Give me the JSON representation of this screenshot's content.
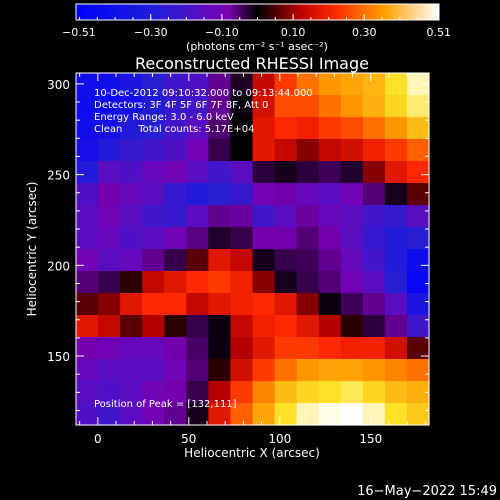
{
  "chart_data": {
    "type": "heatmap",
    "title": "Reconstructed RHESSI Image",
    "xlabel": "Heliocentric X (arcsec)",
    "ylabel": "Heliocentric Y (arcsec)",
    "xlim": [
      -12,
      182
    ],
    "ylim": [
      112,
      306
    ],
    "x_ticks": [
      0,
      50,
      100,
      150
    ],
    "y_ticks": [
      150,
      200,
      250,
      300
    ],
    "colorbar": {
      "unit": "(photons cm⁻² s⁻¹ asec⁻²)",
      "range": [
        -0.51,
        0.51
      ],
      "tick_values": [
        -0.51,
        -0.3,
        -0.1,
        0.1,
        0.3,
        0.51
      ],
      "tick_labels": [
        "−0.51",
        "−0.30",
        "−0.10",
        "0.10",
        "0.30",
        "0.51"
      ]
    },
    "info_lines": [
      "10-Dec-2012 09:10:32.000 to 09:13:44.000",
      "Detectors: 3F 4F 5F 6F 7F 8F, Att 0",
      "Energy Range: 3.0 - 6.0 keV",
      "Clean     Total counts: 5.17E+04"
    ],
    "peak_label": "Position of Peak = [132,111]",
    "peak_position": [
      132,
      111
    ],
    "intensity_grid_rows_top_to_bottom": [
      [
        -0.45,
        -0.45,
        -0.42,
        -0.38,
        -0.34,
        -0.32,
        -0.2,
        -0.05,
        0.1,
        0.2,
        0.26,
        0.3,
        0.32,
        0.35,
        0.42,
        0.48
      ],
      [
        -0.46,
        -0.47,
        -0.44,
        -0.4,
        -0.36,
        -0.34,
        -0.2,
        -0.02,
        0.12,
        0.22,
        0.22,
        0.26,
        0.3,
        0.34,
        0.4,
        0.45
      ],
      [
        -0.45,
        -0.44,
        -0.4,
        -0.38,
        -0.34,
        -0.3,
        -0.15,
        0.0,
        0.14,
        0.18,
        0.16,
        0.2,
        0.22,
        0.26,
        0.3,
        0.36
      ],
      [
        -0.44,
        -0.4,
        -0.36,
        -0.34,
        -0.32,
        -0.26,
        -0.1,
        0.0,
        0.14,
        0.1,
        0.06,
        0.1,
        0.12,
        0.16,
        0.2,
        0.24
      ],
      [
        -0.4,
        -0.3,
        -0.32,
        -0.28,
        -0.26,
        -0.3,
        -0.34,
        -0.3,
        -0.08,
        -0.04,
        -0.08,
        -0.12,
        -0.06,
        0.06,
        0.14,
        0.18
      ],
      [
        -0.32,
        -0.24,
        -0.28,
        -0.3,
        -0.36,
        -0.4,
        -0.38,
        -0.36,
        -0.26,
        -0.24,
        -0.28,
        -0.3,
        -0.26,
        -0.16,
        -0.04,
        0.04
      ],
      [
        -0.3,
        -0.26,
        -0.3,
        -0.34,
        -0.36,
        -0.3,
        -0.2,
        -0.22,
        -0.34,
        -0.3,
        -0.22,
        -0.28,
        -0.3,
        -0.34,
        -0.36,
        -0.3
      ],
      [
        -0.3,
        -0.28,
        -0.32,
        -0.3,
        -0.26,
        -0.18,
        -0.06,
        -0.1,
        -0.24,
        -0.24,
        -0.16,
        -0.24,
        -0.3,
        -0.36,
        -0.4,
        -0.38
      ],
      [
        -0.26,
        -0.3,
        -0.28,
        -0.2,
        -0.1,
        0.04,
        0.14,
        0.1,
        -0.04,
        -0.1,
        -0.12,
        -0.2,
        -0.28,
        -0.34,
        -0.4,
        -0.46
      ],
      [
        -0.16,
        -0.1,
        0.02,
        0.1,
        0.14,
        0.18,
        0.2,
        0.16,
        0.06,
        -0.04,
        -0.1,
        -0.16,
        -0.26,
        -0.3,
        -0.38,
        -0.48
      ],
      [
        0.04,
        0.06,
        0.14,
        0.18,
        0.18,
        0.1,
        0.14,
        0.16,
        0.18,
        0.14,
        0.06,
        -0.02,
        -0.12,
        -0.2,
        -0.3,
        -0.42
      ],
      [
        0.14,
        0.1,
        0.04,
        0.08,
        0.02,
        -0.1,
        -0.02,
        0.1,
        0.16,
        0.18,
        0.14,
        0.08,
        0.02,
        -0.08,
        -0.2,
        -0.34
      ],
      [
        -0.24,
        -0.26,
        -0.28,
        -0.28,
        -0.24,
        -0.14,
        -0.02,
        0.08,
        0.14,
        0.2,
        0.2,
        0.18,
        0.16,
        0.16,
        0.12,
        0.04
      ],
      [
        -0.28,
        -0.3,
        -0.3,
        -0.3,
        -0.26,
        -0.16,
        0.02,
        0.12,
        0.2,
        0.26,
        0.3,
        0.32,
        0.32,
        0.3,
        0.28,
        0.26
      ],
      [
        -0.3,
        -0.32,
        -0.3,
        -0.26,
        -0.24,
        -0.1,
        0.08,
        0.2,
        0.28,
        0.36,
        0.4,
        0.42,
        0.44,
        0.4,
        0.36,
        0.34
      ],
      [
        -0.32,
        -0.34,
        -0.3,
        -0.26,
        -0.2,
        -0.04,
        0.14,
        0.24,
        0.32,
        0.42,
        0.48,
        0.5,
        0.51,
        0.48,
        0.42,
        0.38
      ]
    ]
  },
  "footer": {
    "timestamp": "16−May−2022 15:49"
  }
}
